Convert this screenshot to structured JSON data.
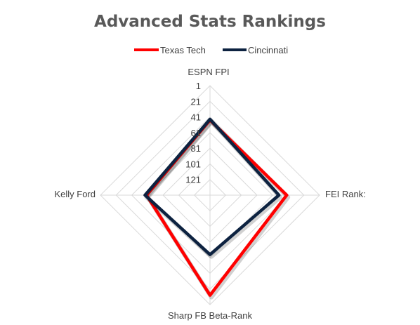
{
  "chart_data": {
    "type": "radar",
    "title": "Advanced Stats Rankings",
    "axes": [
      "ESPN FPI",
      "FEI Rank:",
      "Sharp FB Beta-Rank",
      "Kelly Ford"
    ],
    "scale": {
      "min": 1,
      "max": 141,
      "reversed": true,
      "ticks": [
        "1",
        "21",
        "41",
        "61",
        "81",
        "101",
        "121"
      ]
    },
    "grid": true,
    "legend_position": "top",
    "series": [
      {
        "name": "Texas Tech",
        "color": "#ff0000",
        "values": [
          45,
          43,
          13,
          60
        ]
      },
      {
        "name": "Cincinnati",
        "color": "#0d2240",
        "values": [
          44,
          53,
          65,
          58
        ]
      }
    ]
  }
}
